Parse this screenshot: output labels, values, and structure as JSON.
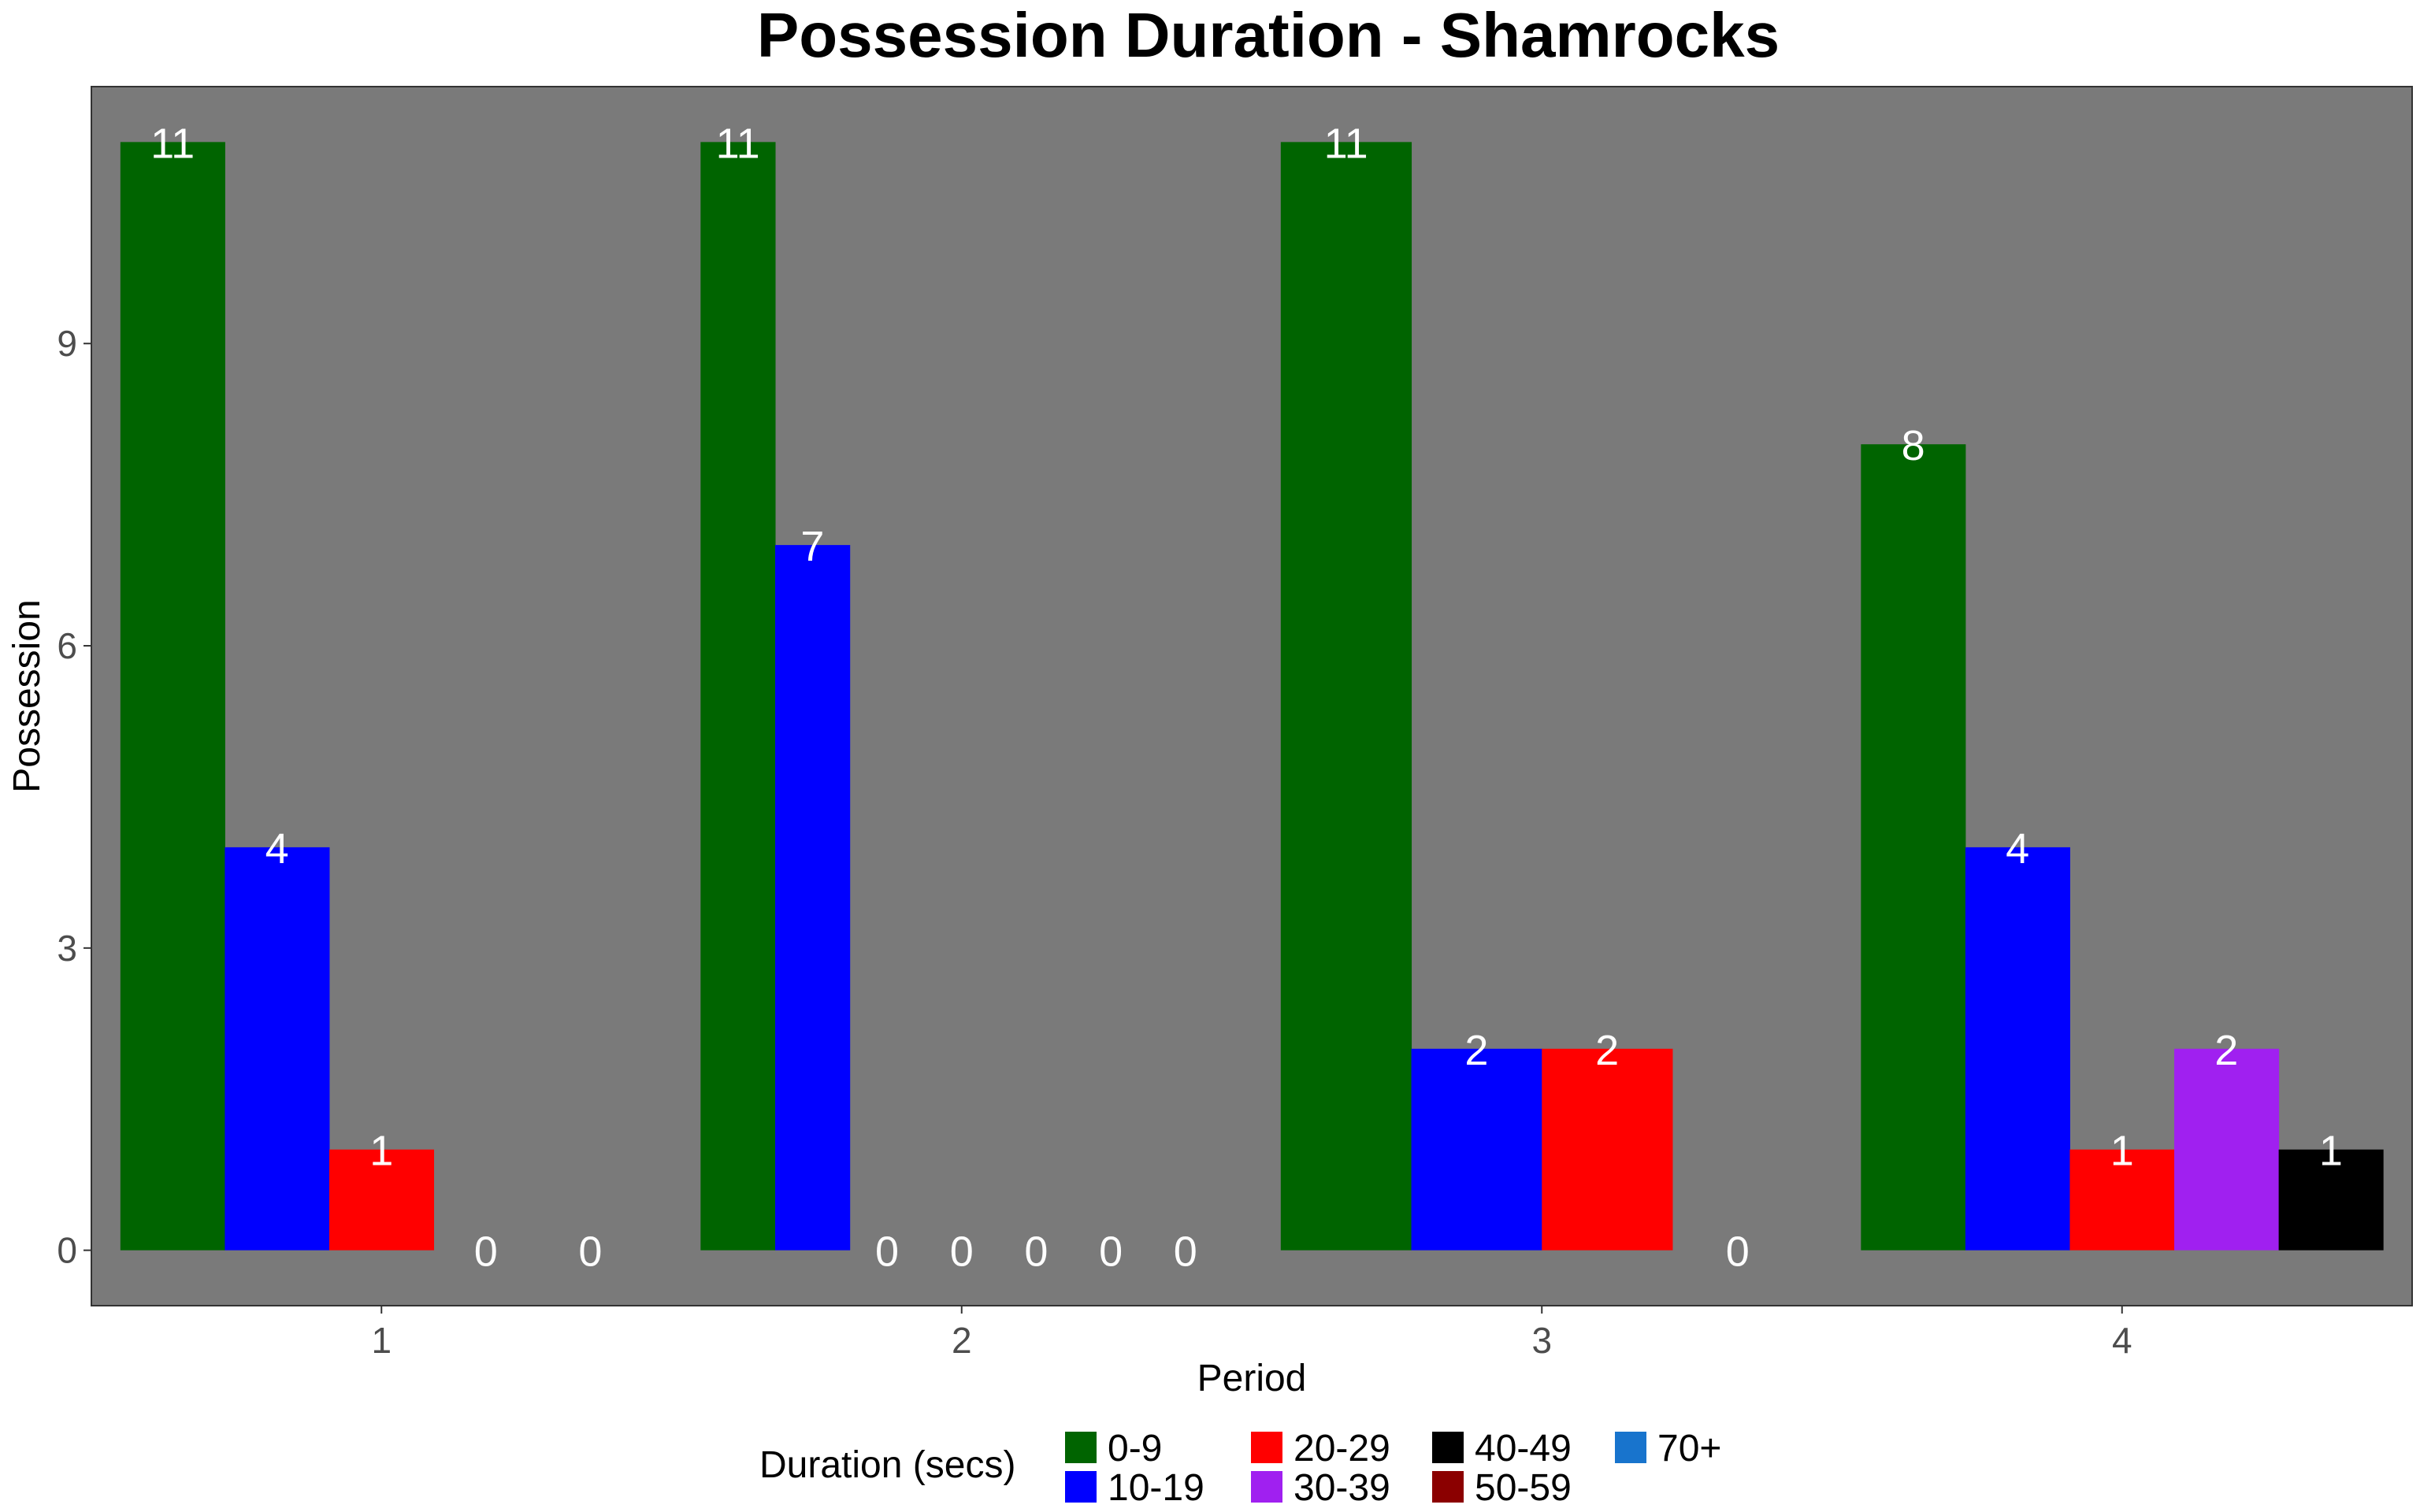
{
  "chart_data": {
    "type": "bar",
    "title": "Possession Duration - Shamrocks",
    "xlabel": "Period",
    "ylabel": "Possession",
    "categories": [
      "1",
      "2",
      "3",
      "4"
    ],
    "y_ticks": [
      0,
      3,
      6,
      9
    ],
    "ylim": [
      -0.55,
      11.55
    ],
    "grid": false,
    "panel_color": "#7a7a7a",
    "legend_title": "Duration (secs)",
    "legend_position": "bottom",
    "legend_items": [
      {
        "name": "0-9",
        "color": "#006400"
      },
      {
        "name": "10-19",
        "color": "#0000ff"
      },
      {
        "name": "20-29",
        "color": "#ff0000"
      },
      {
        "name": "30-39",
        "color": "#a020f0"
      },
      {
        "name": "40-49",
        "color": "#000000"
      },
      {
        "name": "50-59",
        "color": "#8b0000"
      },
      {
        "name": "70+",
        "color": "#1874cd"
      }
    ],
    "groups": [
      {
        "period": "1",
        "bars": [
          {
            "series": "0-9",
            "value": 11
          },
          {
            "series": "10-19",
            "value": 4
          },
          {
            "series": "20-29",
            "value": 1
          },
          {
            "series": "30-39",
            "value": 0
          },
          {
            "series": "40-49",
            "value": 0
          }
        ]
      },
      {
        "period": "2",
        "bars": [
          {
            "series": "0-9",
            "value": 11
          },
          {
            "series": "10-19",
            "value": 7
          },
          {
            "series": "20-29",
            "value": 0
          },
          {
            "series": "30-39",
            "value": 0
          },
          {
            "series": "40-49",
            "value": 0
          },
          {
            "series": "50-59",
            "value": 0
          },
          {
            "series": "70+",
            "value": 0
          }
        ]
      },
      {
        "period": "3",
        "bars": [
          {
            "series": "0-9",
            "value": 11
          },
          {
            "series": "10-19",
            "value": 2
          },
          {
            "series": "20-29",
            "value": 2
          },
          {
            "series": "30-39",
            "value": 0
          }
        ]
      },
      {
        "period": "4",
        "bars": [
          {
            "series": "0-9",
            "value": 8
          },
          {
            "series": "10-19",
            "value": 4
          },
          {
            "series": "20-29",
            "value": 1
          },
          {
            "series": "30-39",
            "value": 2
          },
          {
            "series": "40-49",
            "value": 1
          }
        ]
      }
    ]
  }
}
